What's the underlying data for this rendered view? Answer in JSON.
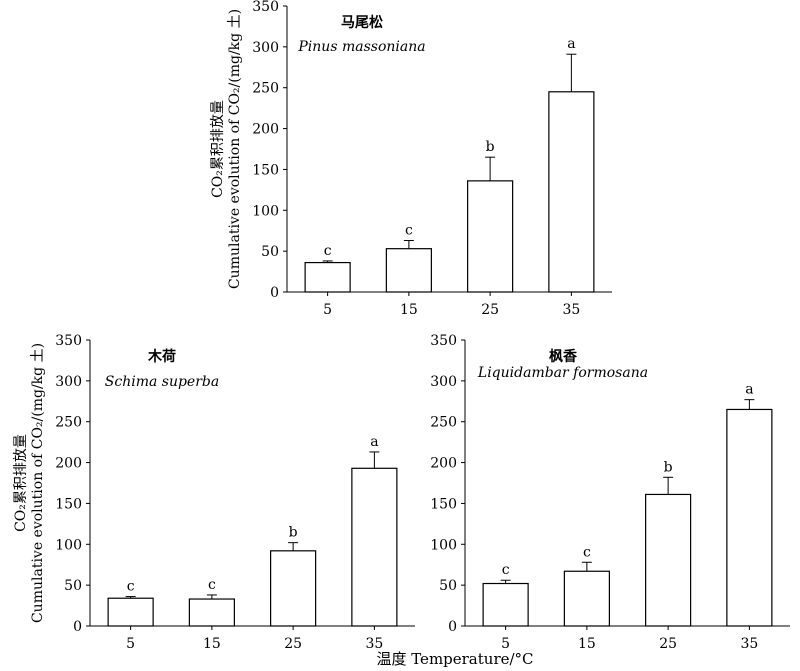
{
  "figure": {
    "ylabel_cn": "CO₂累积排放量",
    "ylabel_en": "Cumulative evolution of CO₂/(mg/kg 土)",
    "xlabel": "温度 Temperature/°C"
  },
  "chart_data": [
    {
      "type": "bar",
      "title": "马尾松",
      "subtitle": "Pinus massoniana",
      "categories": [
        "5",
        "15",
        "25",
        "35"
      ],
      "values": [
        36,
        53,
        136,
        245
      ],
      "error": [
        2,
        10,
        29,
        46
      ],
      "significance": [
        "c",
        "c",
        "b",
        "a"
      ],
      "ylim": [
        0,
        350
      ],
      "yticks": [
        "0",
        "50",
        "100",
        "150",
        "200",
        "250",
        "300",
        "350"
      ],
      "ylabel": "CO₂累积排放量 Cumulative evolution of CO₂/(mg/kg 土)",
      "grid": false
    },
    {
      "type": "bar",
      "title": "木荷",
      "subtitle": "Schima superba",
      "categories": [
        "5",
        "15",
        "25",
        "35"
      ],
      "values": [
        34,
        33,
        92,
        193
      ],
      "error": [
        2,
        5,
        10,
        20
      ],
      "significance": [
        "c",
        "c",
        "b",
        "a"
      ],
      "ylim": [
        0,
        350
      ],
      "yticks": [
        "0",
        "50",
        "100",
        "150",
        "200",
        "250",
        "300",
        "350"
      ],
      "ylabel": "CO₂累积排放量 Cumulative evolution of CO₂/(mg/kg 土)",
      "grid": false
    },
    {
      "type": "bar",
      "title": "枫香",
      "subtitle": "Liquidambar formosana",
      "categories": [
        "5",
        "15",
        "25",
        "35"
      ],
      "values": [
        52,
        67,
        161,
        265
      ],
      "error": [
        4,
        11,
        21,
        12
      ],
      "significance": [
        "c",
        "c",
        "b",
        "a"
      ],
      "ylim": [
        0,
        350
      ],
      "yticks": [
        "0",
        "50",
        "100",
        "150",
        "200",
        "250",
        "300",
        "350"
      ],
      "ylabel": "",
      "grid": false
    }
  ]
}
